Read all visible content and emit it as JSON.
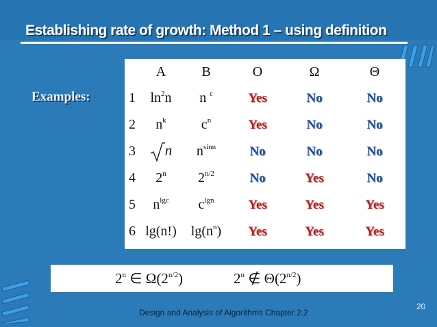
{
  "slide": {
    "title": "Establishing rate of growth: Method 1 – using definition",
    "examples_label": "Examples:",
    "footer": "Design and Analysis of Algorithms Chapter 2.2",
    "page_number": "20"
  },
  "table": {
    "headers": [
      "",
      "A",
      "B",
      "O",
      "Ω",
      "Θ"
    ],
    "rows": [
      {
        "idx": "1",
        "a_base": "ln",
        "a_sup": "2",
        "a_tail": "n",
        "b_base": "n",
        "b_sup": "ε",
        "o": "Yes",
        "omega": "No",
        "theta": "No"
      },
      {
        "idx": "2",
        "a_base": "n",
        "a_sup": "k",
        "a_tail": "",
        "b_base": "c",
        "b_sup": "n",
        "o": "Yes",
        "omega": "No",
        "theta": "No"
      },
      {
        "idx": "3",
        "a_sqrt_var": "n",
        "b_base": "n",
        "b_sup": "sinn",
        "o": "No",
        "omega": "No",
        "theta": "No"
      },
      {
        "idx": "4",
        "a_base": "2",
        "a_sup": "n",
        "a_tail": "",
        "b_base": "2",
        "b_sup": "n/2",
        "o": "No",
        "omega": "Yes",
        "theta": "No"
      },
      {
        "idx": "5",
        "a_base": "n",
        "a_sup": "lgc",
        "a_tail": "",
        "b_base": "c",
        "b_sup": "lgn",
        "o": "Yes",
        "omega": "Yes",
        "theta": "Yes"
      },
      {
        "idx": "6",
        "a_base": "lg(n!)",
        "a_sup": "",
        "a_tail": "",
        "b_base": "lg(n",
        "b_sup": "n",
        "b_tail": ")",
        "o": "Yes",
        "omega": "Yes",
        "theta": "Yes"
      }
    ]
  },
  "formula": {
    "left_base": "2",
    "left_sup": "n",
    "left_rel": " ∈ ",
    "left_op": "Ω(2",
    "left_arg_sup": "n/2",
    "left_close": ")",
    "right_base": "2",
    "right_sup": "n",
    "right_rel": " ∉ ",
    "right_op": "Θ(2",
    "right_arg_sup": "n/2",
    "right_close": ")"
  },
  "colors": {
    "background": "#2b7bb9",
    "yes": "#d01818",
    "no": "#1a4fb0"
  }
}
